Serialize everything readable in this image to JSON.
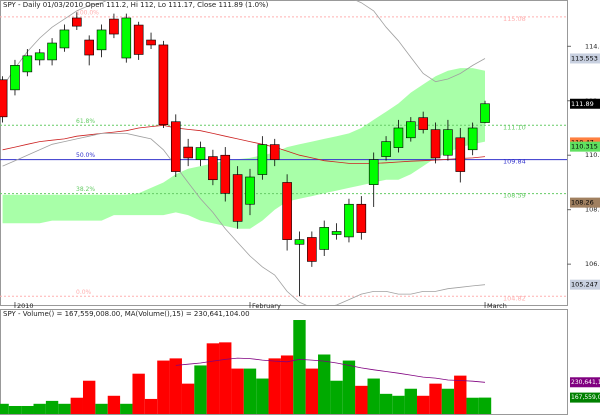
{
  "chart_data": [
    {
      "type": "candlestick",
      "title": "SPY - Daily 01/03/2010 Open 111.2, Hi 112, Lo 111.17, Close 111.89 (1.0%)",
      "categories": [
        null,
        "2010",
        null,
        null,
        null,
        null,
        null,
        null,
        null,
        null,
        null,
        null,
        null,
        null,
        null,
        null,
        null,
        null,
        null,
        null,
        "February",
        null,
        null,
        null,
        null,
        null,
        null,
        null,
        null,
        null,
        null,
        null,
        null,
        null,
        null,
        null,
        null,
        null,
        null,
        "March"
      ],
      "open": [
        112.77,
        112.4,
        113.06,
        113.5,
        113.5,
        113.94,
        115.04,
        114.23,
        113.87,
        115.0,
        113.57,
        114.78,
        114.23,
        114.05,
        111.23,
        110.3,
        109.84,
        109.95,
        110.0,
        109.29,
        108.2,
        109.29,
        110.39,
        109.0,
        106.73,
        106.98,
        106.54,
        107.09,
        107.0,
        108.2,
        108.92,
        109.95,
        110.28,
        110.64,
        111.38,
        110.94,
        110.0,
        110.64,
        110.2,
        111.2
      ],
      "high": [
        112.9,
        113.5,
        113.9,
        113.9,
        114.3,
        114.8,
        115.25,
        114.4,
        114.8,
        115.2,
        115.2,
        114.9,
        114.5,
        114.2,
        111.5,
        110.6,
        110.5,
        110.2,
        110.3,
        109.6,
        109.5,
        110.7,
        110.6,
        109.3,
        107.2,
        107.2,
        107.6,
        107.5,
        108.4,
        108.5,
        110.1,
        110.7,
        111.3,
        111.4,
        111.6,
        111.2,
        111.3,
        111.0,
        111.2,
        112.0
      ],
      "low": [
        111.2,
        112.2,
        112.9,
        113.3,
        113.3,
        113.8,
        114.6,
        113.3,
        113.6,
        114.3,
        113.4,
        113.5,
        113.9,
        111.0,
        109.2,
        109.6,
        109.6,
        108.9,
        108.3,
        107.3,
        107.8,
        109.1,
        109.6,
        106.5,
        104.82,
        105.9,
        106.3,
        106.9,
        106.8,
        106.9,
        108.1,
        109.8,
        110.1,
        110.5,
        110.8,
        109.7,
        109.8,
        109.0,
        110.0,
        111.17
      ],
      "close": [
        111.41,
        113.3,
        113.65,
        113.76,
        114.12,
        114.6,
        114.74,
        113.68,
        114.6,
        114.45,
        115.04,
        113.7,
        114.05,
        111.12,
        109.4,
        109.9,
        110.28,
        109.1,
        108.6,
        107.57,
        109.2,
        110.39,
        109.84,
        106.9,
        106.9,
        106.1,
        107.35,
        107.2,
        108.2,
        107.16,
        109.84,
        110.5,
        111.0,
        111.23,
        110.94,
        109.9,
        110.94,
        109.4,
        111.0,
        111.89
      ],
      "up_color": "#00ff00",
      "down_color": "#ff0000",
      "ylim": [
        104.5,
        115.7
      ],
      "yticks": [
        {
          "value": 106,
          "label": "106.0"
        },
        {
          "value": 108,
          "label": "108.0"
        },
        {
          "value": 110,
          "label": "110.0"
        },
        {
          "value": 112,
          "label": "112.0"
        },
        {
          "value": 114,
          "label": "114.0"
        }
      ],
      "cloud": {
        "color": "#99ff99",
        "upper": [
          108.55,
          108.55,
          108.55,
          108.55,
          108.55,
          108.55,
          108.55,
          108.55,
          108.55,
          108.55,
          108.55,
          108.6,
          108.8,
          109.0,
          109.3,
          109.5,
          109.6,
          109.7,
          109.8,
          109.85,
          109.9,
          110.0,
          110.1,
          110.3,
          110.4,
          110.5,
          110.6,
          110.7,
          110.8,
          111.0,
          111.3,
          111.6,
          111.9,
          112.3,
          112.6,
          112.9,
          113.1,
          113.2,
          113.2,
          113.1
        ],
        "lower": [
          107.5,
          107.5,
          107.5,
          107.5,
          107.6,
          107.6,
          107.6,
          107.6,
          107.6,
          107.8,
          107.8,
          107.8,
          107.8,
          107.8,
          107.9,
          107.8,
          107.6,
          107.5,
          107.4,
          107.3,
          107.3,
          107.6,
          108.0,
          108.3,
          108.4,
          108.5,
          108.6,
          108.7,
          108.8,
          108.9,
          109.0,
          109.1,
          109.1,
          109.3,
          109.6,
          109.9,
          110.1,
          110.3,
          110.4,
          110.5
        ]
      },
      "lines": [
        {
          "color": "#cc2222",
          "values": [
            110.2,
            110.3,
            110.4,
            110.5,
            110.55,
            110.6,
            110.7,
            110.75,
            110.8,
            110.85,
            110.9,
            111.0,
            111.05,
            111.1,
            111.0,
            110.95,
            110.9,
            110.8,
            110.7,
            110.6,
            110.5,
            110.4,
            110.3,
            110.15,
            110.0,
            109.9,
            109.8,
            109.75,
            109.7,
            109.7,
            109.7,
            109.72,
            109.75,
            109.78,
            109.8,
            109.82,
            109.85,
            109.88,
            109.9,
            109.95
          ]
        },
        {
          "color": "#a0a0a0",
          "values": [
            112.5,
            113.2,
            113.8,
            114.3,
            114.7,
            115.0,
            115.3,
            115.5,
            115.6,
            115.8,
            116.0,
            116.0,
            116.0,
            116.1,
            116.0,
            116.1,
            116.2,
            116.3,
            116.3,
            116.2,
            116.0,
            115.8,
            115.9,
            116.0,
            116.1,
            116.2,
            116.2,
            116.0,
            115.8,
            115.6,
            115.3,
            114.7,
            114.2,
            113.6,
            113.0,
            112.7,
            112.8,
            113.0,
            113.3,
            113.553
          ]
        },
        {
          "color": "#a0a0a0",
          "values": [
            109.6,
            109.8,
            110.0,
            110.2,
            110.4,
            110.5,
            110.6,
            110.7,
            110.8,
            110.8,
            110.8,
            110.7,
            110.6,
            110.2,
            109.6,
            109.0,
            108.4,
            107.9,
            107.3,
            106.8,
            106.3,
            105.9,
            105.6,
            105.0,
            104.6,
            104.4,
            104.4,
            104.5,
            104.7,
            104.9,
            105.0,
            105.0,
            104.9,
            104.9,
            105.0,
            105.0,
            105.1,
            105.15,
            105.2,
            105.247
          ]
        }
      ],
      "fib_levels": [
        {
          "pct": "100.0%",
          "price": {
            "value": 115.08,
            "label": "115.08"
          },
          "color": "#ffb0b0"
        },
        {
          "pct": "61.8%",
          "price": {
            "value": 111.1,
            "label": "111.10"
          },
          "color": "#66cc66"
        },
        {
          "pct": "50.0%",
          "price": {
            "value": 109.84,
            "label": "109.84"
          },
          "color": "#3333cc"
        },
        {
          "pct": "38.2%",
          "price": {
            "value": 108.59,
            "label": "108.59"
          },
          "color": "#66cc66"
        },
        {
          "pct": "0.0%",
          "price": {
            "value": 104.82,
            "label": "104.82"
          },
          "color": "#ffb0b0"
        }
      ],
      "indicator_labels": [
        {
          "value": 113.553,
          "color": "#c8d0e0"
        },
        {
          "value": 111.89,
          "color": "#000000"
        },
        {
          "value": 110.47,
          "color": "#ff8040"
        },
        {
          "value": 110.315,
          "color": "#60e060"
        },
        {
          "value": 108.26,
          "color": "#a08060"
        },
        {
          "value": 105.247,
          "color": "#c8d0e0"
        }
      ]
    },
    {
      "type": "bar",
      "title": "SPY - Volume() = 167,559,008.00, MA(Volume(),15) = 230,641,104.00",
      "values": [
        142000000,
        133000000,
        133000000,
        142000000,
        154000000,
        142000000,
        167000000,
        237000000,
        142000000,
        175000000,
        142000000,
        266000000,
        162000000,
        320000000,
        329000000,
        225000000,
        300000000,
        391000000,
        395000000,
        287000000,
        287000000,
        246000000,
        329000000,
        341000000,
        487000000,
        287000000,
        345000000,
        237000000,
        320000000,
        216000000,
        246000000,
        183000000,
        175000000,
        204000000,
        175000000,
        225000000,
        204000000,
        258000000,
        167000000,
        167559008
      ],
      "colors": [
        "#00aa00",
        "#00aa00",
        "#00aa00",
        "#00aa00",
        "#00aa00",
        "#00aa00",
        "#ff0000",
        "#ff0000",
        "#00aa00",
        "#ff0000",
        "#00aa00",
        "#ff0000",
        "#ff0000",
        "#ff0000",
        "#ff0000",
        "#ff0000",
        "#00aa00",
        "#ff0000",
        "#ff0000",
        "#ff0000",
        "#00aa00",
        "#00aa00",
        "#ff0000",
        "#ff0000",
        "#00aa00",
        "#ff0000",
        "#00aa00",
        "#00aa00",
        "#00aa00",
        "#ff0000",
        "#00aa00",
        "#00aa00",
        "#00aa00",
        "#00aa00",
        "#ff0000",
        "#ff0000",
        "#00aa00",
        "#ff0000",
        "#00aa00",
        "#00aa00"
      ],
      "ma": {
        "color": "#800080",
        "values": [
          null,
          null,
          null,
          null,
          null,
          null,
          null,
          null,
          null,
          null,
          null,
          null,
          null,
          null,
          300000000,
          305000000,
          310000000,
          318000000,
          325000000,
          330000000,
          328000000,
          322000000,
          318000000,
          315000000,
          325000000,
          322000000,
          318000000,
          310000000,
          300000000,
          290000000,
          282000000,
          275000000,
          268000000,
          260000000,
          252000000,
          248000000,
          240000000,
          238000000,
          235000000,
          230641104
        ]
      },
      "ylim": [
        100000000,
        520000000
      ],
      "indicator_labels": [
        {
          "value": 230641104,
          "label": "230,641,104",
          "color": "#800080"
        },
        {
          "value": 167559008,
          "label": "167,559,008",
          "color": "#008000"
        }
      ]
    }
  ]
}
